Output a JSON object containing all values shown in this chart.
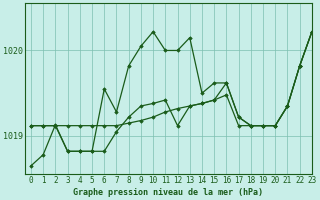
{
  "title": "Graphe pression niveau de la mer (hPa)",
  "background_color": "#c8eee8",
  "line_color": "#1a5c1a",
  "grid_color": "#7dbfb0",
  "xlim": [
    -0.5,
    23
  ],
  "ylim": [
    1018.55,
    1020.55
  ],
  "yticks": [
    1019,
    1020
  ],
  "ytick_labels": [
    "1019",
    "1020"
  ],
  "xticks": [
    0,
    1,
    2,
    3,
    4,
    5,
    6,
    7,
    8,
    9,
    10,
    11,
    12,
    13,
    14,
    15,
    16,
    17,
    18,
    19,
    20,
    21,
    22,
    23
  ],
  "series1": [
    1018.65,
    1018.78,
    1019.13,
    1018.82,
    1018.82,
    1018.82,
    1019.55,
    1019.28,
    1019.82,
    1020.05,
    1020.22,
    1020.0,
    1020.0,
    1020.15,
    1019.5,
    1019.62,
    1019.62,
    1019.22,
    1019.12,
    1019.12,
    1019.12,
    1019.35,
    1019.82,
    1020.22
  ],
  "series2": [
    1019.12,
    1019.12,
    1019.12,
    1019.12,
    1019.12,
    1019.12,
    1019.12,
    1019.12,
    1019.15,
    1019.18,
    1019.22,
    1019.28,
    1019.32,
    1019.35,
    1019.38,
    1019.42,
    1019.62,
    1019.22,
    1019.12,
    1019.12,
    1019.12,
    1019.35,
    1019.82,
    1020.22
  ],
  "series3": [
    1019.12,
    1019.12,
    1019.12,
    1018.82,
    1018.82,
    1018.82,
    1018.82,
    1019.05,
    1019.22,
    1019.35,
    1019.38,
    1019.42,
    1019.12,
    1019.35,
    1019.38,
    1019.42,
    1019.48,
    1019.12,
    1019.12,
    1019.12,
    1019.12,
    1019.35,
    1019.82,
    1020.22
  ],
  "marker": "D",
  "markersize": 1.8,
  "linewidth": 0.9,
  "tick_fontsize": 5.5,
  "label_fontsize": 6.0
}
